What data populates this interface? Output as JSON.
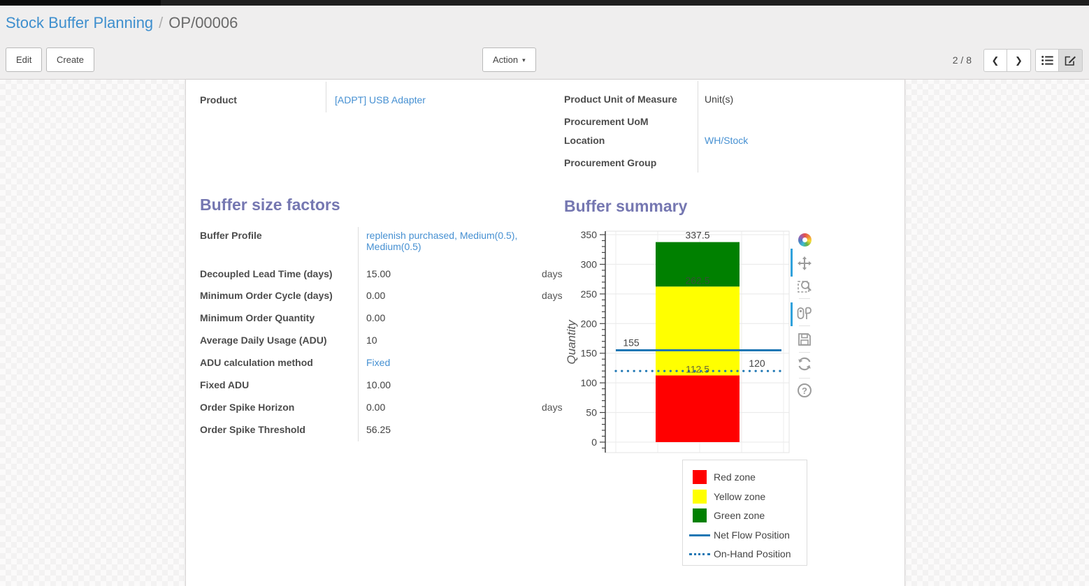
{
  "breadcrumb": {
    "parent": "Stock Buffer Planning",
    "separator": "/",
    "current": "OP/00006"
  },
  "toolbar": {
    "edit_label": "Edit",
    "create_label": "Create",
    "action_label": "Action",
    "pager": "2 / 8"
  },
  "view_switcher": {
    "views": [
      "list",
      "form"
    ],
    "active_view": "form"
  },
  "record": {
    "left_fields": [
      {
        "label": "Product",
        "value": "[ADPT] USB Adapter",
        "link": true
      }
    ],
    "right_fields": [
      {
        "label": "Product Unit of Measure",
        "value": "Unit(s)",
        "link": false
      },
      {
        "label": "Procurement UoM",
        "value": "",
        "link": false
      },
      {
        "label": "Location",
        "value": "WH/Stock",
        "link": true
      },
      {
        "label": "Procurement Group",
        "value": "",
        "link": false
      }
    ]
  },
  "buffer_factors": {
    "title": "Buffer size factors",
    "rows": [
      {
        "label": "Buffer Profile",
        "value": "replenish purchased, Medium(0.5), Medium(0.5)",
        "link": true
      },
      {
        "label": "Decoupled Lead Time (days)",
        "value": "15.00",
        "unit": "days"
      },
      {
        "label": "Minimum Order Cycle (days)",
        "value": "0.00",
        "unit": "days"
      },
      {
        "label": "Minimum Order Quantity",
        "value": "0.00"
      },
      {
        "label": "Average Daily Usage (ADU)",
        "value": "10"
      },
      {
        "label": "ADU calculation method",
        "value": "Fixed",
        "link": true
      },
      {
        "label": "Fixed ADU",
        "value": "10.00"
      },
      {
        "label": "Order Spike Horizon",
        "value": "0.00",
        "unit": "days"
      },
      {
        "label": "Order Spike Threshold",
        "value": "56.25"
      }
    ]
  },
  "buffer_summary": {
    "title": "Buffer summary"
  },
  "chart_data": {
    "type": "bar",
    "title": "Buffer summary",
    "xlabel": "",
    "ylabel": "Quantity",
    "ylim": [
      0,
      350
    ],
    "yticks": [
      0,
      50,
      100,
      150,
      200,
      250,
      300,
      350
    ],
    "grid": true,
    "stacked_zones": [
      {
        "name": "Red zone",
        "from": 0,
        "to": 112.5,
        "color": "#ff0000",
        "boundary_label": "112.5"
      },
      {
        "name": "Yellow zone",
        "from": 112.5,
        "to": 262.5,
        "color": "#ffff00",
        "boundary_label": "262.5"
      },
      {
        "name": "Green zone",
        "from": 262.5,
        "to": 337.5,
        "color": "#008000",
        "boundary_label": "337.5"
      }
    ],
    "reference_lines": [
      {
        "name": "Net Flow Position",
        "value": 155,
        "style": "solid",
        "color": "#1f77b4",
        "label": "155",
        "label_side": "left"
      },
      {
        "name": "On-Hand Position",
        "value": 120,
        "style": "dotted",
        "color": "#1f77b4",
        "label": "120",
        "label_side": "right"
      }
    ],
    "legend": [
      {
        "label": "Red zone",
        "swatch": "square",
        "color": "#ff0000"
      },
      {
        "label": "Yellow zone",
        "swatch": "square",
        "color": "#ffff00"
      },
      {
        "label": "Green zone",
        "swatch": "square",
        "color": "#008000"
      },
      {
        "label": "Net Flow Position",
        "swatch": "line-solid",
        "color": "#1f77b4"
      },
      {
        "label": "On-Hand Position",
        "swatch": "line-dotted",
        "color": "#1f77b4"
      }
    ],
    "legend_position": "below-right"
  },
  "chart_toolbar": {
    "icons": [
      "plotly-logo",
      "pan",
      "box-zoom",
      "compare-hover",
      "download",
      "reset-axes",
      "help"
    ]
  },
  "colors": {
    "link": "#4690d2",
    "heading": "#7577b1",
    "label": "#4c4c4c",
    "accent_blue": "#31a2dc",
    "net_flow_line": "#1f77b4"
  }
}
